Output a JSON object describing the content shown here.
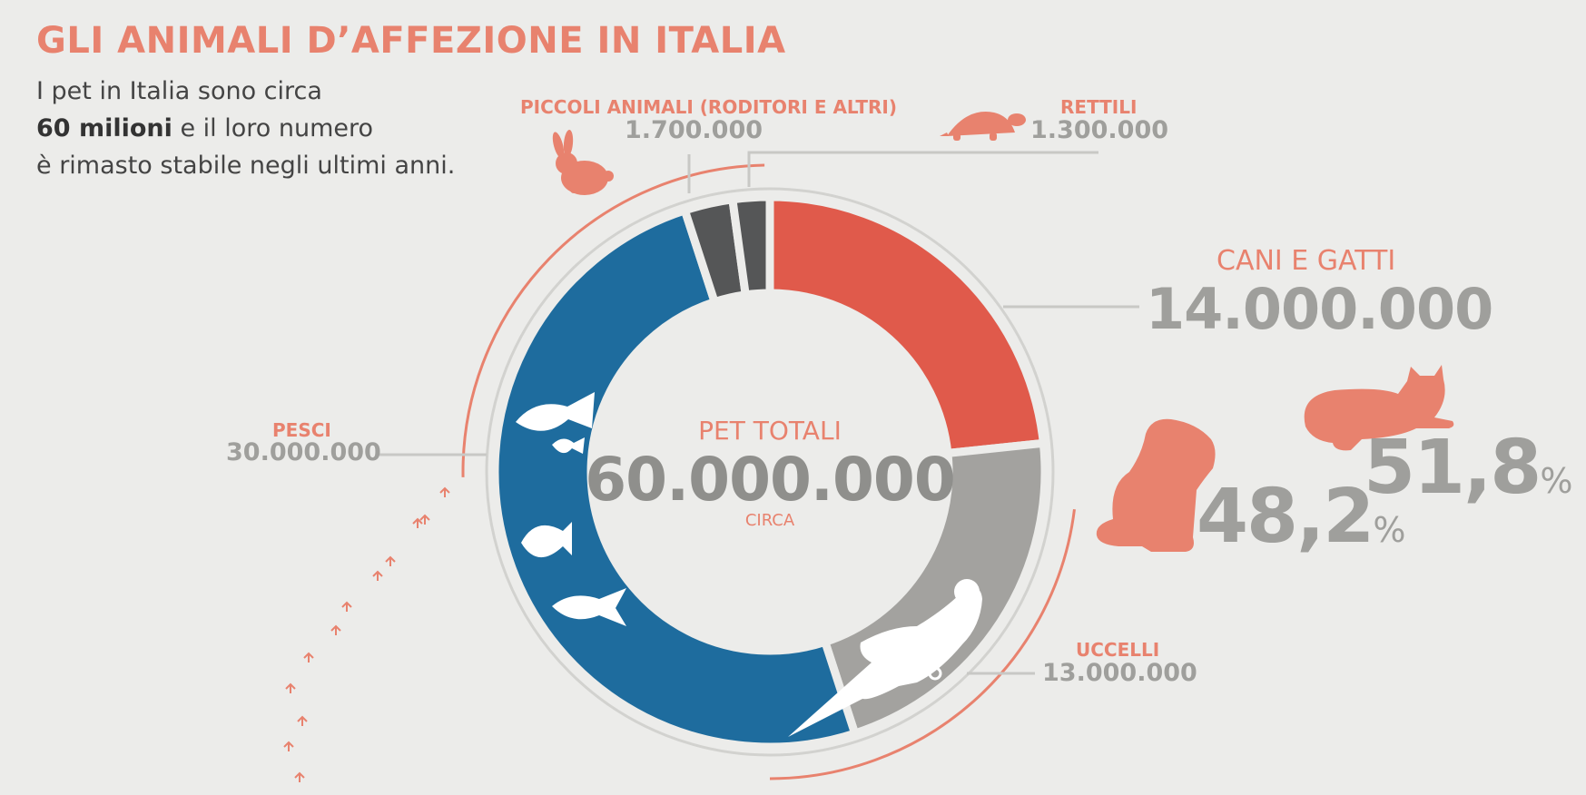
{
  "title": "GLI ANIMALI D’AFFEZIONE IN ITALIA",
  "intro": {
    "line1": "I pet in Italia sono circa",
    "bold": "60 milioni",
    "line2_rest": " e il loro numero",
    "line3": "è rimasto stabile negli ultimi anni."
  },
  "center": {
    "label": "PET TOTALI",
    "value": "60.000.000",
    "sub": "CIRCA"
  },
  "labels": {
    "piccoli": {
      "name": "PICCOLI ANIMALI (RODITORI E ALTRI)",
      "value": "1.700.000"
    },
    "rettili": {
      "name": "RETTILI",
      "value": "1.300.000"
    },
    "cani_gatti": {
      "name": "CANI E GATTI",
      "value": "14.000.000"
    },
    "pesci": {
      "name": "PESCI",
      "value": "30.000.000"
    },
    "uccelli": {
      "name": "UCCELLI",
      "value": "13.000.000"
    }
  },
  "split": {
    "dog": {
      "value": "48,2",
      "unit": "%"
    },
    "cat": {
      "value": "51,8",
      "unit": "%"
    }
  },
  "colors": {
    "cani_gatti": "#e05a4b",
    "uccelli": "#a3a29f",
    "pesci": "#1e6c9e",
    "piccoli": "#555657",
    "rettili": "#555657",
    "accent": "#e8826e",
    "leader": "#c8c8c5"
  },
  "icons": [
    "rabbit-icon",
    "turtle-icon",
    "cat-icon",
    "dog-icon",
    "fish-icon",
    "parrot-icon",
    "footprints-icon"
  ],
  "chart_data": {
    "type": "pie",
    "categories": [
      "CANI E GATTI",
      "UCCELLI",
      "PESCI",
      "PICCOLI ANIMALI (RODITORI E ALTRI)",
      "RETTILI"
    ],
    "values": [
      14000000,
      13000000,
      30000000,
      1700000,
      1300000
    ],
    "total": 60000000,
    "donut": true,
    "sub_split": {
      "category": "CANI E GATTI",
      "cani": 48.2,
      "gatti": 51.8
    }
  }
}
